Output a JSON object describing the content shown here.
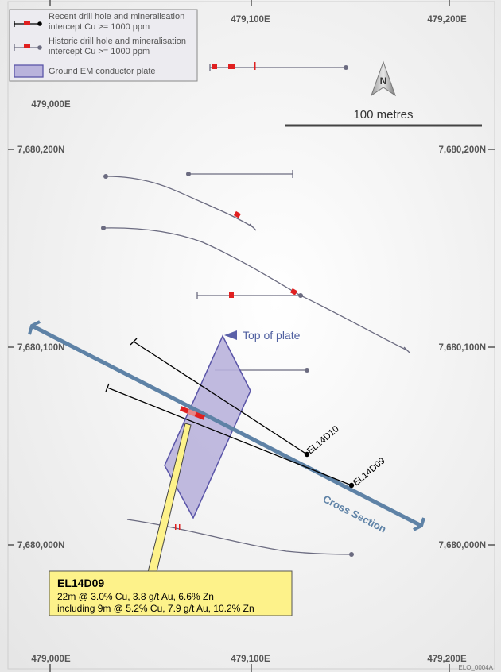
{
  "legend": {
    "items": [
      {
        "label_line1": "Recent drill hole and mineralisation",
        "label_line2": "intercept Cu >= 1000 ppm",
        "icon": "recent-drill-hole-icon"
      },
      {
        "label_line1": "Historic drill hole and mineralisation",
        "label_line2": "intercept Cu >= 1000 ppm",
        "icon": "historic-drill-hole-icon"
      },
      {
        "label_line1": "Ground EM conductor plate",
        "label_line2": "",
        "icon": "em-plate-icon"
      }
    ]
  },
  "grid": {
    "eastings": [
      "479,000E",
      "479,100E",
      "479,200E"
    ],
    "northings": [
      "7,680,200N",
      "7,680,100N",
      "7,680,000N"
    ]
  },
  "scale_bar": {
    "label": "100 metres"
  },
  "north_arrow": {
    "letter": "N"
  },
  "annotations": {
    "top_of_plate": "Top of plate",
    "cross_section": "Cross Section",
    "hole_el14d10": "EL14D10",
    "hole_el14d09": "EL14D09"
  },
  "callout": {
    "title": "EL14D09",
    "line1": "22m @ 3.0% Cu, 3.8 g/t Au, 6.6% Zn",
    "line2": "including 9m @ 5.2% Cu, 7.9 g/t Au, 10.2% Zn"
  },
  "figure_code": "ELO_0004A",
  "colors": {
    "recent_hole": "#000000",
    "historic_hole": "#6b6b80",
    "intercept": "#e02020",
    "plate_fill": "#b9b3dc",
    "plate_stroke": "#5a55a8",
    "section_line": "#5e82a6",
    "callout_fill": "#fdf28a",
    "label_blue": "#5060a0"
  }
}
